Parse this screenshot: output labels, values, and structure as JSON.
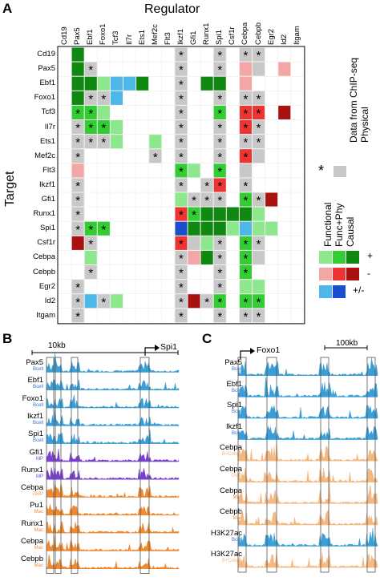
{
  "panelA": {
    "letter": "A",
    "regulator_title": "Regulator",
    "target_title": "Target",
    "regulators": [
      "Cd19",
      "Pax5",
      "Ebf1",
      "Foxo1",
      "Tcf3",
      "Il7r",
      "Ets1",
      "Mef2c",
      "Flt3",
      "Ikzf1",
      "Gfi1",
      "Runx1",
      "Spi1",
      "Csf1r",
      "Cebpa",
      "Cebpb",
      "Egr2",
      "Id2",
      "Itgam"
    ],
    "targets": [
      "Cd19",
      "Pax5",
      "Ebf1",
      "Foxo1",
      "Tcf3",
      "Il7r",
      "Ets1",
      "Mef2c",
      "Flt3",
      "Ikzf1",
      "Gfi1",
      "Runx1",
      "Spi1",
      "Csf1r",
      "Cebpa",
      "Cebpb",
      "Egr2",
      "Id2",
      "Itgam"
    ],
    "legend": {
      "chip_title": "Data from ChIP-seq",
      "star_symbol": "*",
      "physical_label": "Physical",
      "functional_label": "Functional",
      "funcphy_label": "Func+Phy",
      "causal_label": "Causal",
      "plus_label": "+",
      "minus_label": "-",
      "plusminus_label": "+/-",
      "colors": {
        "physical": "#c8c8c8",
        "pos_functional": "#8de88d",
        "pos_funcphy": "#33cc33",
        "pos_causal": "#118811",
        "neg_functional": "#f4a6a6",
        "neg_funcphy": "#ee3333",
        "neg_causal": "#aa1111",
        "pm_functional": "#4db8e8",
        "pm_causal": "#1a4fcc"
      }
    },
    "cells": {
      "Cd19": [
        null,
        "pc",
        null,
        null,
        null,
        null,
        null,
        null,
        null,
        "p*",
        null,
        null,
        "p*",
        null,
        "p*",
        "p*",
        null,
        null,
        null
      ],
      "Pax5": [
        null,
        "pc",
        "p*",
        null,
        null,
        null,
        null,
        null,
        null,
        "p*",
        null,
        null,
        "p*",
        null,
        "rf",
        "p",
        null,
        "rf",
        null
      ],
      "Ebf1": [
        null,
        "pc",
        "pc",
        "pf",
        "ml",
        "mf",
        "pc",
        null,
        null,
        "p*",
        null,
        "pc",
        "pc",
        null,
        "rf",
        null,
        null,
        null,
        null
      ],
      "Foxo1": [
        null,
        "pc",
        "p*",
        "p*",
        "ml",
        null,
        null,
        null,
        null,
        "p*",
        null,
        null,
        "p*",
        null,
        "p*",
        "p*",
        null,
        null,
        null
      ],
      "Tcf3": [
        null,
        "pp*",
        "pp*",
        "pf",
        null,
        null,
        null,
        null,
        null,
        "p*",
        null,
        null,
        "pp*",
        null,
        "rp*",
        "rp*",
        null,
        "rc",
        null
      ],
      "Il7r": [
        null,
        "p*",
        "pp*",
        "pp*",
        "pf",
        null,
        null,
        null,
        null,
        "p*",
        null,
        null,
        "p*",
        null,
        "rp*",
        "p*",
        null,
        null,
        null
      ],
      "Ets1": [
        null,
        "p*",
        "p*",
        "p*",
        "pf",
        null,
        null,
        "pf",
        null,
        "p*",
        null,
        null,
        "p*",
        null,
        "p*",
        "p*",
        null,
        null,
        null
      ],
      "Mef2c": [
        null,
        "p*",
        null,
        null,
        null,
        null,
        null,
        "p*",
        null,
        "p*",
        null,
        null,
        "p*",
        null,
        "rp*",
        "p",
        null,
        null,
        null
      ],
      "Flt3": [
        null,
        "rf",
        null,
        null,
        null,
        null,
        null,
        null,
        null,
        "pp*",
        "pf",
        null,
        "pp*",
        null,
        "p",
        null,
        null,
        null,
        null
      ],
      "Ikzf1": [
        null,
        "p*",
        null,
        null,
        null,
        null,
        null,
        null,
        null,
        "p*",
        null,
        "p*",
        "rp*",
        null,
        "p*",
        null,
        null,
        null,
        null
      ],
      "Gfi1": [
        null,
        "p*",
        null,
        null,
        null,
        null,
        null,
        null,
        null,
        "pf",
        "p*",
        "p*",
        "p*",
        null,
        "pp*",
        "p*",
        "rc",
        null,
        null
      ],
      "Runx1": [
        null,
        "p*",
        null,
        null,
        null,
        null,
        null,
        null,
        null,
        "rp*",
        "pp*",
        "pc",
        "pc",
        "pc",
        "pc",
        "pf",
        null,
        null,
        null
      ],
      "Spi1": [
        null,
        "p*",
        "pp*",
        "pp*",
        null,
        null,
        null,
        null,
        null,
        "bc",
        "pc",
        "pc",
        "pc",
        "pf",
        "mf",
        "pf",
        "pf",
        null,
        null
      ],
      "Csf1r": [
        null,
        "rc",
        "p*",
        null,
        null,
        null,
        null,
        null,
        null,
        "rp*",
        "p",
        "pf",
        "p*",
        null,
        "pp*",
        "p*",
        null,
        null,
        null
      ],
      "Cebpa": [
        null,
        null,
        "pf",
        null,
        null,
        null,
        null,
        null,
        null,
        "p*",
        "rf",
        "pc",
        "p*",
        null,
        "pp*",
        "p",
        null,
        null,
        null
      ],
      "Cebpb": [
        null,
        null,
        "p*",
        null,
        null,
        null,
        null,
        null,
        null,
        "p*",
        null,
        null,
        "p*",
        null,
        "pp*",
        null,
        null,
        null,
        null
      ],
      "Egr2": [
        null,
        "p*",
        null,
        null,
        null,
        null,
        null,
        null,
        null,
        "p*",
        null,
        null,
        "p*",
        null,
        "pf",
        "pf",
        null,
        null,
        null
      ],
      "Id2": [
        null,
        "p*",
        "mf",
        "p*",
        "pf",
        null,
        null,
        null,
        null,
        "p*",
        "rc",
        "p*",
        "pp*",
        null,
        "pp*",
        "pp*",
        null,
        null,
        null
      ],
      "Itgam": [
        null,
        "p*",
        null,
        null,
        null,
        null,
        null,
        null,
        null,
        "p*",
        null,
        null,
        "p*",
        null,
        "p*",
        "p*",
        null,
        null,
        null
      ]
    }
  },
  "panelB": {
    "letter": "B",
    "scale_label": "10kb",
    "gene_label": "Spi1",
    "tracks": [
      {
        "name": "Pax5",
        "sub": "Bcell",
        "color": "#3a9fd8",
        "sub_color": "#3a6fd8"
      },
      {
        "name": "Ebf1",
        "sub": "Bcell",
        "color": "#3a9fd8",
        "sub_color": "#3a6fd8"
      },
      {
        "name": "Foxo1",
        "sub": "Bcell",
        "color": "#3a9fd8",
        "sub_color": "#3a6fd8"
      },
      {
        "name": "Ikzf1",
        "sub": "Bcell",
        "color": "#3a9fd8",
        "sub_color": "#3a6fd8"
      },
      {
        "name": "Spi1",
        "sub": "Bcell",
        "color": "#3a9fd8",
        "sub_color": "#3a6fd8"
      },
      {
        "name": "Gfi1",
        "sub": "MP",
        "color": "#7a3fd0",
        "sub_color": "#7a3fd0"
      },
      {
        "name": "Runx1",
        "sub": "MP",
        "color": "#7a3fd0",
        "sub_color": "#7a3fd0"
      },
      {
        "name": "Cebpa",
        "sub": "GMP",
        "color": "#f08a30",
        "sub_color": "#f0a060"
      },
      {
        "name": "Pu1",
        "sub": "Mac",
        "color": "#f08a30",
        "sub_color": "#f08a30"
      },
      {
        "name": "Runx1",
        "sub": "Mac",
        "color": "#f08a30",
        "sub_color": "#f08a30"
      },
      {
        "name": "Cebpa",
        "sub": "Mac",
        "color": "#f08a30",
        "sub_color": "#f08a30"
      },
      {
        "name": "Cebpb",
        "sub": "Mac",
        "color": "#f08a30",
        "sub_color": "#f08a30"
      }
    ]
  },
  "panelC": {
    "letter": "C",
    "scale_label": "100kb",
    "gene_label": "Foxo1",
    "tracks": [
      {
        "name": "Pax5",
        "sub": "Bcell",
        "color": "#3a9fd8",
        "sub_color": "#3a6fd8"
      },
      {
        "name": "Ebf1",
        "sub": "Bcell",
        "color": "#3a9fd8",
        "sub_color": "#3a6fd8"
      },
      {
        "name": "Spi1",
        "sub": "Bcell",
        "color": "#3a9fd8",
        "sub_color": "#3a6fd8"
      },
      {
        "name": "Ikzf1",
        "sub": "Bcell",
        "color": "#3a9fd8",
        "sub_color": "#3a6fd8"
      },
      {
        "name": "Cebpa",
        "sub": "B+Cebpa",
        "color": "#f5b880",
        "sub_color": "#f5b880"
      },
      {
        "name": "Cebpa",
        "sub": "GMP",
        "color": "#f5b880",
        "sub_color": "#f5b880"
      },
      {
        "name": "Cebpa",
        "sub": "Mac",
        "color": "#f5b880",
        "sub_color": "#f08a30"
      },
      {
        "name": "Cebpb",
        "sub": "Mac",
        "color": "#f5b880",
        "sub_color": "#f08a30"
      },
      {
        "name": "H3K27ac",
        "sub": "Bcell",
        "color": "#3a9fd8",
        "sub_color": "#3a6fd8"
      },
      {
        "name": "H3K27ac",
        "sub": "B+Cebpa",
        "color": "#f5b880",
        "sub_color": "#f5b880"
      }
    ]
  }
}
